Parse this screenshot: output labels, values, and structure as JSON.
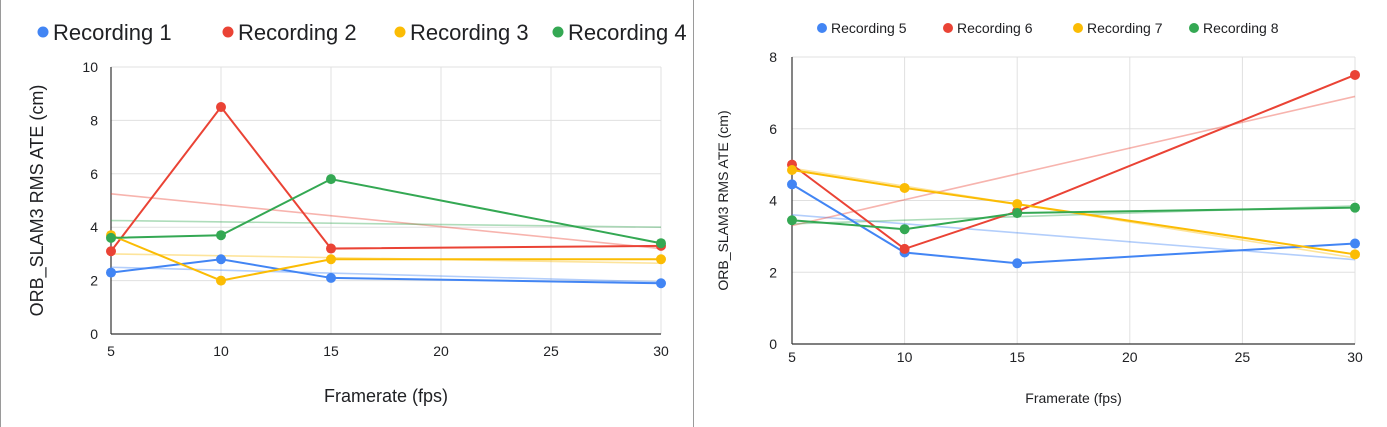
{
  "chart_data": [
    {
      "type": "line",
      "title": "",
      "xlabel": "Framerate (fps)",
      "ylabel": "ORB_SLAM3 RMS ATE (cm)",
      "x": [
        5,
        10,
        15,
        30
      ],
      "xticks": [
        5,
        10,
        15,
        20,
        25,
        30
      ],
      "yticks": [
        0,
        2,
        4,
        6,
        8,
        10
      ],
      "xlim": [
        5,
        30
      ],
      "ylim": [
        0,
        10
      ],
      "grid": true,
      "legend_position": "top",
      "trendlines": true,
      "series": [
        {
          "name": "Recording 1",
          "color": "#4285F4",
          "values": [
            2.3,
            2.8,
            2.1,
            1.9
          ],
          "trend": [
            2.5,
            1.95
          ]
        },
        {
          "name": "Recording 2",
          "color": "#EA4335",
          "values": [
            3.1,
            8.5,
            3.2,
            3.3
          ],
          "trend": [
            5.25,
            3.2
          ]
        },
        {
          "name": "Recording 3",
          "color": "#FBBC04",
          "values": [
            3.7,
            2.0,
            2.8,
            2.8
          ],
          "trend": [
            3.0,
            2.65
          ]
        },
        {
          "name": "Recording 4",
          "color": "#34A853",
          "values": [
            3.6,
            3.7,
            5.8,
            3.4
          ],
          "trend": [
            4.25,
            4.0
          ]
        }
      ]
    },
    {
      "type": "line",
      "title": "",
      "xlabel": "Framerate (fps)",
      "ylabel": "ORB_SLAM3 RMS ATE (cm)",
      "x": [
        5,
        10,
        15,
        30
      ],
      "xticks": [
        5,
        10,
        15,
        20,
        25,
        30
      ],
      "yticks": [
        0,
        2,
        4,
        6,
        8
      ],
      "xlim": [
        5,
        30
      ],
      "ylim": [
        0,
        8
      ],
      "grid": true,
      "legend_position": "top",
      "trendlines": true,
      "series": [
        {
          "name": "Recording 5",
          "color": "#4285F4",
          "values": [
            4.45,
            2.55,
            2.25,
            2.8
          ],
          "trend": [
            3.6,
            2.35
          ]
        },
        {
          "name": "Recording 6",
          "color": "#EA4335",
          "values": [
            5.0,
            2.65,
            3.7,
            7.5
          ],
          "trend": [
            3.3,
            6.9
          ]
        },
        {
          "name": "Recording 7",
          "color": "#FBBC04",
          "values": [
            4.85,
            4.35,
            3.9,
            2.5
          ],
          "trend": [
            4.9,
            2.4
          ]
        },
        {
          "name": "Recording 8",
          "color": "#34A853",
          "values": [
            3.45,
            3.2,
            3.65,
            3.8
          ],
          "trend": [
            3.35,
            3.85
          ]
        }
      ]
    }
  ]
}
